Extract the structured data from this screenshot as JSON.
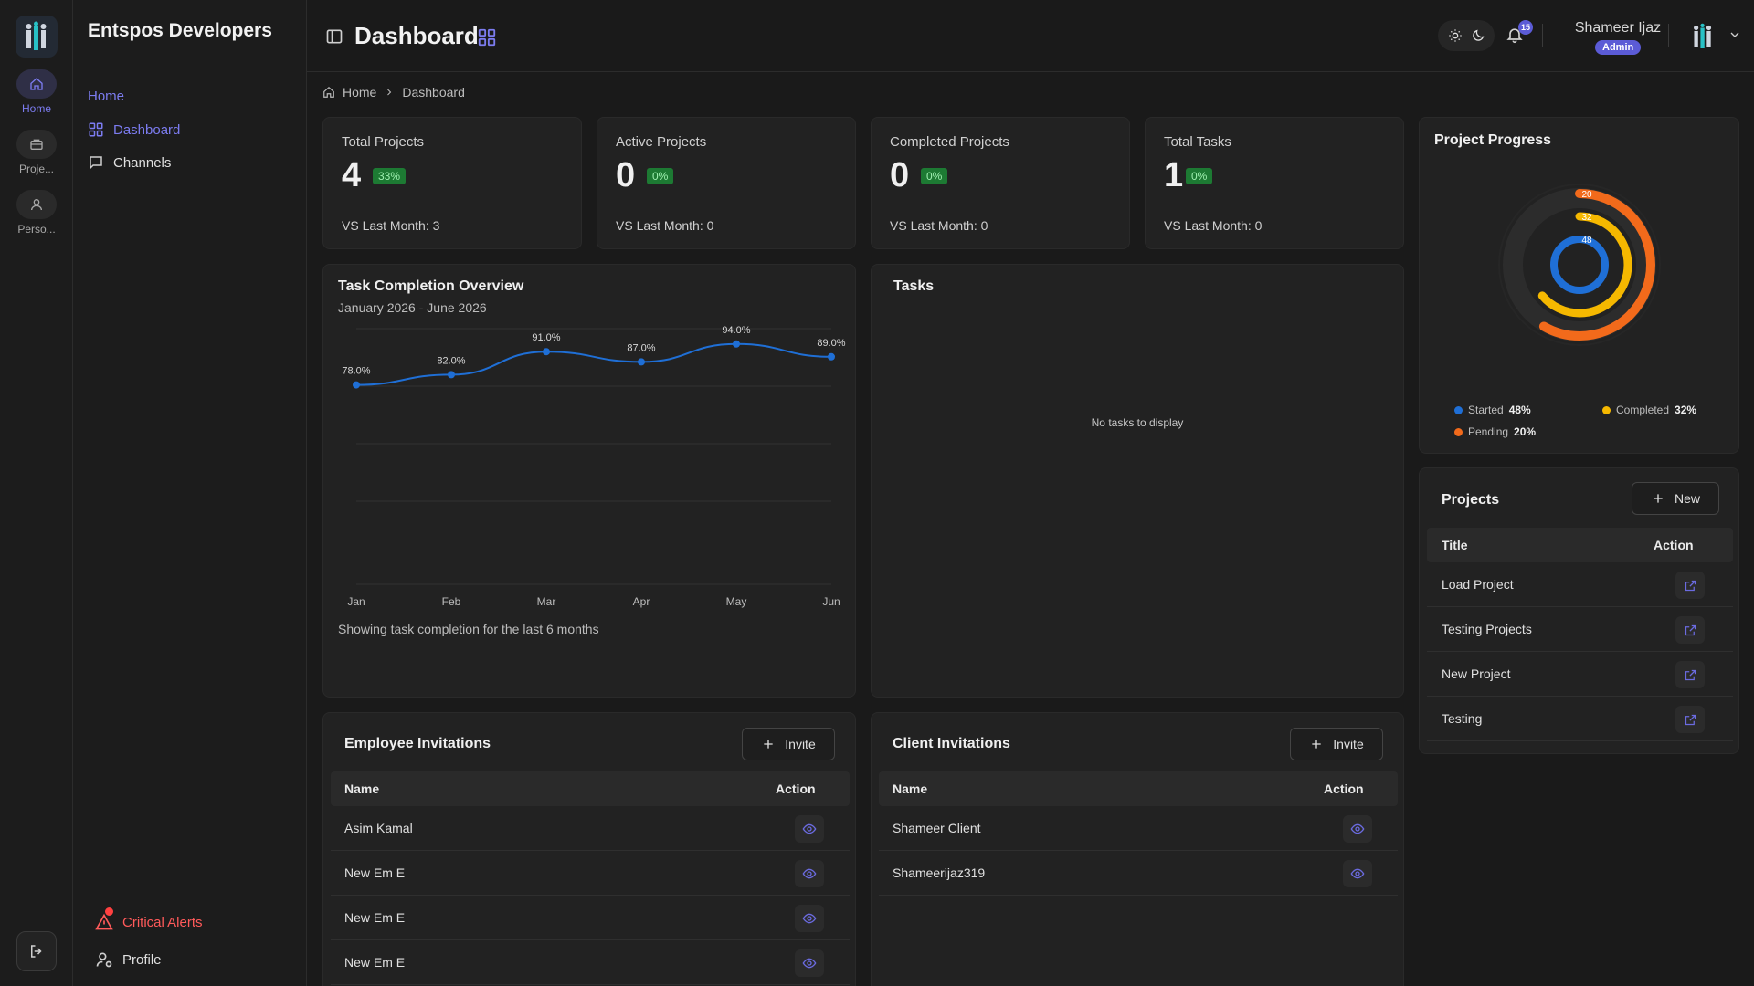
{
  "org": {
    "name": "Entspos Developers"
  },
  "rail": {
    "items": [
      {
        "label": "Home",
        "icon": "home-icon"
      },
      {
        "label": "Proje...",
        "icon": "briefcase-icon"
      },
      {
        "label": "Perso...",
        "icon": "user-icon"
      }
    ]
  },
  "sidebar": {
    "section": "Home",
    "items": [
      {
        "label": "Dashboard",
        "icon": "grid-icon"
      },
      {
        "label": "Channels",
        "icon": "chat-icon"
      }
    ],
    "bottom": {
      "alerts": "Critical Alerts",
      "profile": "Profile"
    }
  },
  "header": {
    "title": "Dashboard",
    "notifications": "15",
    "user_name": "Shameer Ijaz",
    "user_role": "Admin"
  },
  "breadcrumb": {
    "home": "Home",
    "current": "Dashboard"
  },
  "stats": [
    {
      "label": "Total Projects",
      "value": "4",
      "pct": "33%",
      "vs": "VS Last Month: 3"
    },
    {
      "label": "Active Projects",
      "value": "0",
      "pct": "0%",
      "vs": "VS Last Month: 0"
    },
    {
      "label": "Completed Projects",
      "value": "0",
      "pct": "0%",
      "vs": "VS Last Month: 0"
    },
    {
      "label": "Total Tasks",
      "value": "1",
      "pct": "0%",
      "vs": "VS Last Month: 0"
    }
  ],
  "task_chart": {
    "title": "Task Completion Overview",
    "subtitle": "January 2026 - June 2026",
    "footer": "Showing task completion for the last 6 months"
  },
  "chart_data": {
    "type": "line",
    "categories": [
      "Jan",
      "Feb",
      "Mar",
      "Apr",
      "May",
      "Jun"
    ],
    "values": [
      78.0,
      82.0,
      91.0,
      87.0,
      94.0,
      89.0
    ],
    "labels": [
      "78.0%",
      "82.0%",
      "91.0%",
      "87.0%",
      "94.0%",
      "89.0%"
    ],
    "ylim": [
      0,
      100
    ],
    "color": "#1f6fd6",
    "grid": true
  },
  "tasks": {
    "title": "Tasks",
    "empty": "No tasks to display"
  },
  "progress": {
    "title": "Project Progress",
    "rings": [
      {
        "name": "Started",
        "value": 48,
        "label": "48",
        "pct": "48%",
        "color": "#1f6fd6"
      },
      {
        "name": "Completed",
        "value": 32,
        "label": "32",
        "pct": "32%",
        "color": "#f5b800"
      },
      {
        "name": "Pending",
        "value": 20,
        "label": "20",
        "pct": "20%",
        "color": "#f26a1b"
      }
    ]
  },
  "projects": {
    "title": "Projects",
    "new_label": "New",
    "col_title": "Title",
    "col_action": "Action",
    "rows": [
      "Load Project",
      "Testing Projects",
      "New Project",
      "Testing"
    ]
  },
  "employee_inv": {
    "title": "Employee Invitations",
    "invite_label": "Invite",
    "col_name": "Name",
    "col_action": "Action",
    "rows": [
      "Asim Kamal",
      "New Em E",
      "New Em E",
      "New Em E"
    ]
  },
  "client_inv": {
    "title": "Client Invitations",
    "invite_label": "Invite",
    "col_name": "Name",
    "col_action": "Action",
    "rows": [
      "Shameer Client",
      "Shameerijaz319"
    ]
  }
}
